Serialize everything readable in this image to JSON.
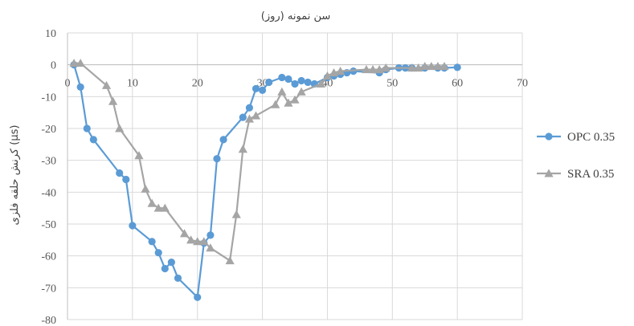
{
  "chart_data": {
    "type": "line",
    "title": "سن نمونه (روز)",
    "xlabel": "سن نمونه (روز)",
    "ylabel": "کرنش حلقه فلزی (µs)",
    "xlim": [
      0,
      70
    ],
    "ylim": [
      -80,
      10
    ],
    "x_ticks": [
      0,
      10,
      20,
      30,
      40,
      50,
      60,
      70
    ],
    "y_ticks": [
      10,
      0,
      -10,
      -20,
      -30,
      -40,
      -50,
      -60,
      -70,
      -80
    ],
    "x_axis_position": "at y = 0",
    "grid": true,
    "legend_position": "right",
    "series": [
      {
        "name": "OPC 0.35",
        "color": "#5b9bd5",
        "marker": "circle",
        "x": [
          1,
          2,
          3,
          4,
          8,
          9,
          10,
          13,
          14,
          15,
          16,
          17,
          20,
          21,
          22,
          23,
          24,
          27,
          28,
          29,
          30,
          31,
          33,
          34,
          35,
          36,
          37,
          38,
          40,
          41,
          42,
          43,
          44,
          48,
          49,
          51,
          52,
          53,
          55,
          57,
          58,
          60
        ],
        "y": [
          0,
          -7,
          -20,
          -23.5,
          -34,
          -36,
          -50.5,
          -55.5,
          -59,
          -64,
          -62,
          -67,
          -73,
          -56,
          -53.5,
          -29.5,
          -23.5,
          -16.5,
          -13.5,
          -7.5,
          -8,
          -5.5,
          -4,
          -4.5,
          -6,
          -5,
          -5.5,
          -6,
          -4,
          -3.5,
          -3,
          -2.5,
          -2,
          -2.5,
          -1.5,
          -1,
          -1,
          -1,
          -1,
          -1,
          -1,
          -0.8
        ]
      },
      {
        "name": "SRA 0.35",
        "color": "#a5a5a5",
        "marker": "triangle",
        "x": [
          1,
          2,
          6,
          7,
          8,
          11,
          12,
          13,
          14,
          15,
          18,
          19,
          20,
          21,
          22,
          25,
          26,
          27,
          28,
          29,
          32,
          33,
          34,
          35,
          36,
          39,
          40,
          41,
          42,
          46,
          47,
          48,
          49,
          53,
          54,
          55,
          56,
          57,
          58
        ],
        "y": [
          0.5,
          0.5,
          -6.5,
          -11.5,
          -20,
          -28.5,
          -39,
          -43.5,
          -45,
          -45,
          -53,
          -55,
          -55.5,
          -55.5,
          -57.5,
          -61.5,
          -47,
          -26.5,
          -17,
          -16,
          -12.5,
          -8.5,
          -12,
          -11,
          -8.5,
          -6,
          -3.5,
          -2.5,
          -2,
          -1.5,
          -1.5,
          -1.5,
          -1,
          -1,
          -1,
          -0.5,
          -0.5,
          -0.5,
          -0.5
        ]
      }
    ]
  }
}
